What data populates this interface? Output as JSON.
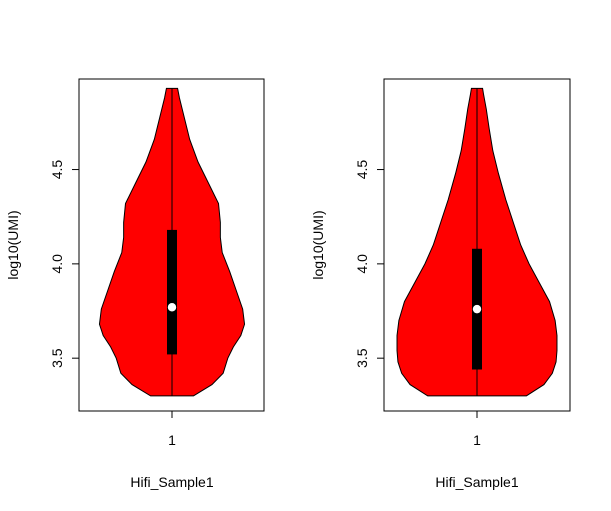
{
  "chart_data": [
    {
      "type": "violin",
      "xlabel": "Hifi_Sample1",
      "ylabel": "log10(UMI)",
      "categories": [
        "1"
      ],
      "yticks": [
        "3.5",
        "4.0",
        "4.5"
      ],
      "ylim": [
        3.22,
        4.98
      ],
      "fill_color": "#ff0000",
      "box_color": "#000000",
      "median_color": "#ffffff",
      "min": 3.3,
      "max": 4.93,
      "q1": 3.52,
      "median": 3.77,
      "q3": 4.18,
      "density_profile": [
        [
          3.3,
          0.23
        ],
        [
          3.36,
          0.43
        ],
        [
          3.42,
          0.55
        ],
        [
          3.5,
          0.6
        ],
        [
          3.56,
          0.66
        ],
        [
          3.62,
          0.74
        ],
        [
          3.68,
          0.78
        ],
        [
          3.76,
          0.76
        ],
        [
          3.86,
          0.69
        ],
        [
          3.96,
          0.62
        ],
        [
          4.06,
          0.54
        ],
        [
          4.14,
          0.52
        ],
        [
          4.22,
          0.52
        ],
        [
          4.32,
          0.5
        ],
        [
          4.42,
          0.4
        ],
        [
          4.54,
          0.28
        ],
        [
          4.66,
          0.19
        ],
        [
          4.78,
          0.13
        ],
        [
          4.88,
          0.08
        ],
        [
          4.93,
          0.06
        ]
      ]
    },
    {
      "type": "violin",
      "xlabel": "Hifi_Sample1",
      "ylabel": "log10(UMI)",
      "categories": [
        "1"
      ],
      "yticks": [
        "3.5",
        "4.0",
        "4.5"
      ],
      "ylim": [
        3.22,
        4.98
      ],
      "fill_color": "#ff0000",
      "box_color": "#000000",
      "median_color": "#ffffff",
      "min": 3.3,
      "max": 4.93,
      "q1": 3.44,
      "median": 3.76,
      "q3": 4.08,
      "density_profile": [
        [
          3.3,
          0.53
        ],
        [
          3.36,
          0.72
        ],
        [
          3.42,
          0.81
        ],
        [
          3.48,
          0.85
        ],
        [
          3.54,
          0.86
        ],
        [
          3.62,
          0.86
        ],
        [
          3.7,
          0.84
        ],
        [
          3.8,
          0.78
        ],
        [
          3.9,
          0.67
        ],
        [
          4.0,
          0.56
        ],
        [
          4.1,
          0.47
        ],
        [
          4.22,
          0.39
        ],
        [
          4.34,
          0.31
        ],
        [
          4.48,
          0.23
        ],
        [
          4.6,
          0.17
        ],
        [
          4.72,
          0.13
        ],
        [
          4.82,
          0.1
        ],
        [
          4.9,
          0.07
        ],
        [
          4.93,
          0.06
        ]
      ]
    }
  ]
}
